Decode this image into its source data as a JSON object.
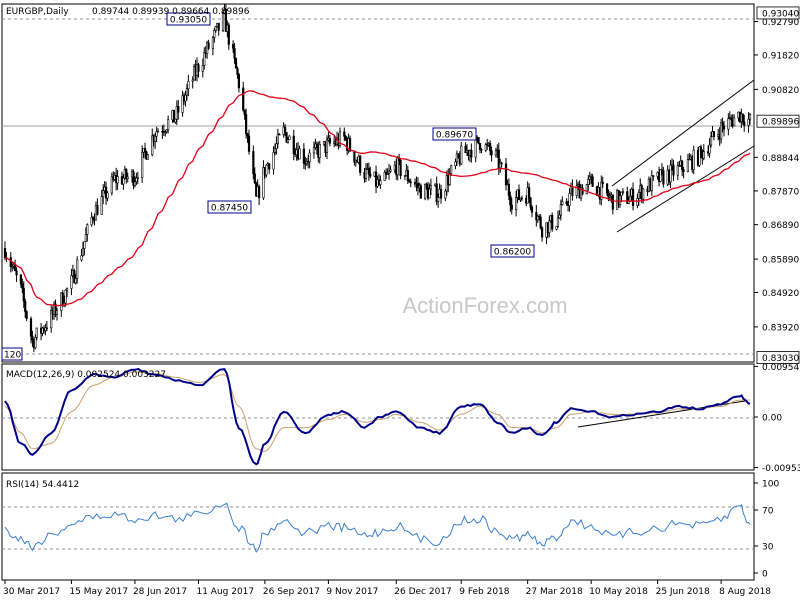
{
  "header": {
    "symbol": "EURGBP,Daily",
    "ohlc": "0.89744 0.89939 0.89664 0.89896"
  },
  "watermark": "ActionForex.com",
  "colors": {
    "candle": "#000000",
    "ma": "#e0001a",
    "macd_line": "#00008b",
    "macd_signal": "#c8a070",
    "rsi": "#3a7fd0",
    "grid": "#c0c0c0",
    "frame": "#000000",
    "price_box": "#ffffff",
    "label_box_border": "#00008b"
  },
  "chart_data": [
    {
      "type": "candlestick",
      "panel": "price",
      "title": "EURGBP,Daily",
      "ylim": [
        0.829,
        0.933
      ],
      "y_ticks": [
        "0.93040",
        "0.92790",
        "0.91820",
        "0.90820",
        "0.89896",
        "0.88844",
        "0.87870",
        "0.86890",
        "0.85890",
        "0.84920",
        "0.83920",
        "0.83030"
      ],
      "x_ticks": [
        "30 Mar 2017",
        "15 May 2017",
        "28 Jun 2017",
        "11 Aug 2017",
        "26 Sep 2017",
        "9 Nov 2017",
        "26 Dec 2017",
        "9 Feb 2018",
        "27 Mar 2018",
        "10 May 2018",
        "25 Jun 2018",
        "8 Aug 2018"
      ],
      "annotations": [
        "0.93050",
        "0.87450",
        "0.89670",
        "0.86200",
        "120"
      ],
      "current_price": "0.89896",
      "close_series": [
        {
          "date": "2017-03-30",
          "close": 0.862
        },
        {
          "date": "2017-04-10",
          "close": 0.85
        },
        {
          "date": "2017-04-18",
          "close": 0.835
        },
        {
          "date": "2017-05-01",
          "close": 0.842
        },
        {
          "date": "2017-05-15",
          "close": 0.852
        },
        {
          "date": "2017-05-30",
          "close": 0.872
        },
        {
          "date": "2017-06-14",
          "close": 0.882
        },
        {
          "date": "2017-06-28",
          "close": 0.883
        },
        {
          "date": "2017-07-12",
          "close": 0.896
        },
        {
          "date": "2017-07-26",
          "close": 0.9
        },
        {
          "date": "2017-08-11",
          "close": 0.915
        },
        {
          "date": "2017-08-29",
          "close": 0.929
        },
        {
          "date": "2017-09-08",
          "close": 0.91
        },
        {
          "date": "2017-09-20",
          "close": 0.876
        },
        {
          "date": "2017-09-26",
          "close": 0.885
        },
        {
          "date": "2017-10-09",
          "close": 0.896
        },
        {
          "date": "2017-10-24",
          "close": 0.888
        },
        {
          "date": "2017-11-09",
          "close": 0.892
        },
        {
          "date": "2017-11-20",
          "close": 0.894
        },
        {
          "date": "2017-12-04",
          "close": 0.884
        },
        {
          "date": "2017-12-15",
          "close": 0.88
        },
        {
          "date": "2017-12-26",
          "close": 0.886
        },
        {
          "date": "2018-01-12",
          "close": 0.879
        },
        {
          "date": "2018-01-25",
          "close": 0.878
        },
        {
          "date": "2018-02-09",
          "close": 0.889
        },
        {
          "date": "2018-02-22",
          "close": 0.893
        },
        {
          "date": "2018-03-06",
          "close": 0.888
        },
        {
          "date": "2018-03-16",
          "close": 0.876
        },
        {
          "date": "2018-03-27",
          "close": 0.878
        },
        {
          "date": "2018-04-06",
          "close": 0.868
        },
        {
          "date": "2018-04-16",
          "close": 0.87
        },
        {
          "date": "2018-04-26",
          "close": 0.878
        },
        {
          "date": "2018-05-10",
          "close": 0.881
        },
        {
          "date": "2018-05-25",
          "close": 0.876
        },
        {
          "date": "2018-06-08",
          "close": 0.877
        },
        {
          "date": "2018-06-25",
          "close": 0.882
        },
        {
          "date": "2018-07-10",
          "close": 0.885
        },
        {
          "date": "2018-07-24",
          "close": 0.889
        },
        {
          "date": "2018-08-08",
          "close": 0.897
        },
        {
          "date": "2018-08-21",
          "close": 0.901
        },
        {
          "date": "2018-08-28",
          "close": 0.899
        }
      ]
    },
    {
      "type": "line",
      "panel": "macd",
      "title": "MACD(12,26,9) 0.002524 0.003227",
      "ylim": [
        -0.01,
        0.01
      ],
      "y_ticks": [
        "0.00954",
        "0.00",
        "-0.009538"
      ],
      "series": [
        {
          "name": "MACD",
          "values": [
            0.003,
            -0.005,
            -0.007,
            -0.003,
            0.005,
            0.008,
            0.0075,
            0.009,
            0.008,
            0.007,
            0.006,
            0.009,
            -0.002,
            -0.009,
            -0.005,
            0.001,
            -0.003,
            0.0005,
            0.001,
            -0.002,
            0.0,
            0.001,
            -0.002,
            -0.003,
            0.002,
            0.0025,
            -0.001,
            -0.003,
            -0.002,
            -0.0035,
            -0.001,
            0.0015,
            0.001,
            0.0,
            0.0005,
            0.001,
            0.002,
            0.0015,
            0.0025,
            0.004,
            0.0025
          ]
        },
        {
          "name": "Signal",
          "values": [
            0.002,
            -0.003,
            -0.006,
            -0.005,
            0.001,
            0.006,
            0.0075,
            0.0085,
            0.0082,
            0.0075,
            0.0065,
            0.008,
            0.002,
            -0.006,
            -0.0065,
            -0.002,
            -0.002,
            -0.0005,
            0.0005,
            -0.001,
            -0.0005,
            0.0005,
            -0.001,
            -0.0025,
            0.0005,
            0.002,
            0.0005,
            -0.002,
            -0.002,
            -0.003,
            -0.002,
            0.0005,
            0.001,
            0.0005,
            0.0005,
            0.0008,
            0.0015,
            0.0016,
            0.002,
            0.0032,
            0.0032
          ]
        }
      ]
    },
    {
      "type": "line",
      "panel": "rsi",
      "title": "RSI(14) 54.4412",
      "ylim": [
        0,
        100
      ],
      "y_ticks": [
        "100",
        "70",
        "30",
        "0"
      ],
      "series": [
        {
          "name": "RSI",
          "values": [
            48,
            38,
            30,
            42,
            55,
            62,
            65,
            60,
            64,
            60,
            65,
            78,
            50,
            28,
            45,
            58,
            45,
            52,
            50,
            42,
            46,
            52,
            38,
            35,
            58,
            60,
            45,
            38,
            42,
            32,
            40,
            58,
            52,
            40,
            45,
            50,
            55,
            52,
            60,
            75,
            54
          ]
        }
      ]
    }
  ]
}
